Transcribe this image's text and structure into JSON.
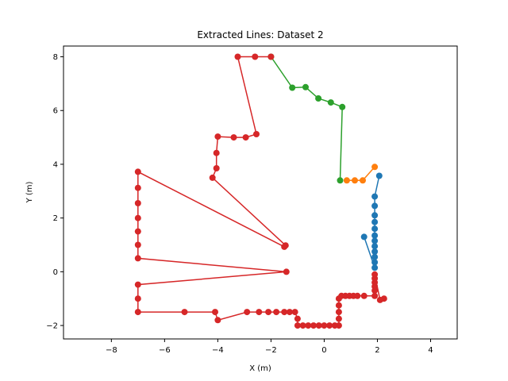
{
  "chart_data": {
    "type": "line",
    "title": "Extracted Lines: Dataset 2",
    "xlabel": "X (m)",
    "ylabel": "Y (m)",
    "xlim": [
      -9.8,
      5.0
    ],
    "ylim": [
      -2.5,
      8.4
    ],
    "xticks": [
      -8,
      -6,
      -4,
      -2,
      0,
      2,
      4
    ],
    "yticks": [
      -2,
      0,
      2,
      4,
      6,
      8
    ],
    "grid": false,
    "legend": "none",
    "series": [
      {
        "color": "#1f77b4",
        "points": [
          [
            2.07,
            3.57
          ],
          [
            1.9,
            2.8
          ],
          [
            1.9,
            2.45
          ],
          [
            1.9,
            2.1
          ],
          [
            1.9,
            1.85
          ],
          [
            1.9,
            1.6
          ],
          [
            1.9,
            1.35
          ],
          [
            1.9,
            1.15
          ],
          [
            1.9,
            0.95
          ],
          [
            1.9,
            0.75
          ],
          [
            1.9,
            0.55
          ],
          [
            1.9,
            0.35
          ],
          [
            1.9,
            0.15
          ],
          [
            1.5,
            1.3
          ]
        ]
      },
      {
        "color": "#ff7f0e",
        "points": [
          [
            1.9,
            3.9
          ],
          [
            1.45,
            3.4
          ],
          [
            1.15,
            3.4
          ],
          [
            0.85,
            3.4
          ]
        ]
      },
      {
        "color": "#2ca02c",
        "points": [
          [
            0.6,
            3.4
          ],
          [
            0.68,
            6.13
          ],
          [
            0.25,
            6.3
          ],
          [
            -0.22,
            6.45
          ],
          [
            -0.7,
            6.87
          ],
          [
            -1.2,
            6.85
          ],
          [
            -2.0,
            8.0
          ]
        ]
      },
      {
        "color": "#d62728",
        "points": [
          [
            -2.0,
            8.0
          ],
          [
            -2.6,
            8.0
          ],
          [
            -3.25,
            8.0
          ],
          [
            -2.55,
            5.12
          ],
          [
            -2.95,
            5.0
          ],
          [
            -3.4,
            5.0
          ],
          [
            -4.0,
            5.03
          ],
          [
            -4.05,
            4.42
          ],
          [
            -4.05,
            3.85
          ],
          [
            -4.2,
            3.5
          ],
          [
            -1.45,
            0.98
          ],
          [
            -1.5,
            0.93
          ],
          [
            -7.0,
            3.72
          ],
          [
            -7.0,
            3.12
          ],
          [
            -7.0,
            2.55
          ],
          [
            -7.0,
            2.0
          ],
          [
            -7.0,
            1.5
          ],
          [
            -7.0,
            1.0
          ],
          [
            -7.0,
            0.5
          ],
          [
            -1.42,
            0.0
          ],
          [
            -7.0,
            -0.48
          ],
          [
            -7.0,
            -1.0
          ],
          [
            -7.0,
            -1.5
          ],
          [
            -5.25,
            -1.5
          ],
          [
            -4.1,
            -1.5
          ],
          [
            -4.0,
            -1.8
          ],
          [
            -2.9,
            -1.5
          ],
          [
            -2.45,
            -1.5
          ],
          [
            -2.1,
            -1.5
          ],
          [
            -1.8,
            -1.5
          ],
          [
            -1.5,
            -1.5
          ],
          [
            -1.3,
            -1.5
          ],
          [
            -1.1,
            -1.5
          ],
          [
            -1.0,
            -1.75
          ],
          [
            -1.0,
            -2.0
          ],
          [
            -0.8,
            -2.0
          ],
          [
            -0.6,
            -2.0
          ],
          [
            -0.4,
            -2.0
          ],
          [
            -0.2,
            -2.0
          ],
          [
            0.0,
            -2.0
          ],
          [
            0.2,
            -2.0
          ],
          [
            0.4,
            -2.0
          ],
          [
            0.55,
            -2.0
          ],
          [
            0.55,
            -1.75
          ],
          [
            0.55,
            -1.5
          ],
          [
            0.55,
            -1.25
          ],
          [
            0.55,
            -1.0
          ],
          [
            0.65,
            -0.9
          ],
          [
            0.8,
            -0.9
          ],
          [
            0.95,
            -0.9
          ],
          [
            1.1,
            -0.9
          ],
          [
            1.25,
            -0.9
          ],
          [
            1.5,
            -0.9
          ],
          [
            1.9,
            -0.9
          ],
          [
            1.9,
            -0.7
          ],
          [
            1.9,
            -0.55
          ],
          [
            1.9,
            -0.4
          ],
          [
            1.9,
            -0.25
          ],
          [
            1.9,
            -0.1
          ],
          [
            2.1,
            -1.05
          ],
          [
            2.25,
            -1.0
          ]
        ]
      }
    ]
  }
}
